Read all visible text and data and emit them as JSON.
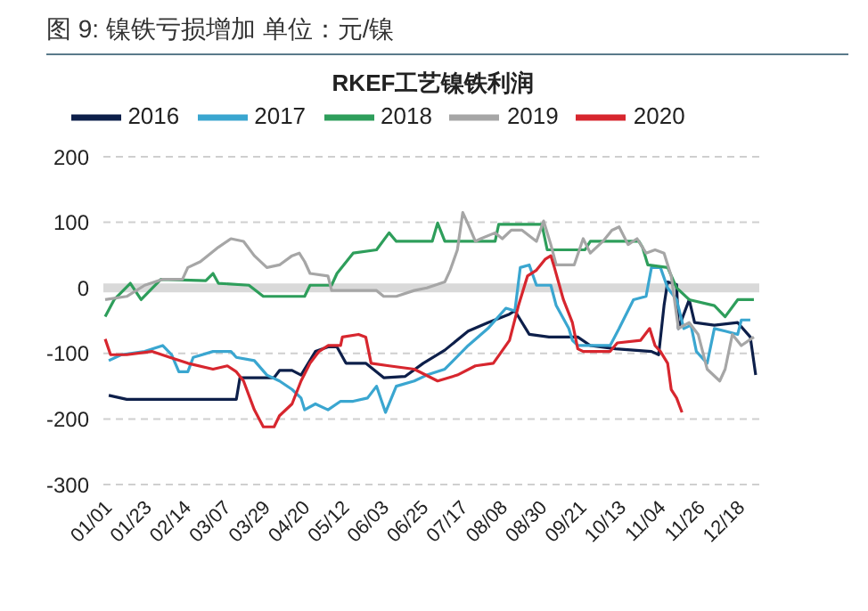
{
  "chart_data": {
    "type": "line",
    "title": "图 9:  镍铁亏损增加   单位：元/镍",
    "subtitle": "RKEF工艺镍铁利润",
    "xlim": [
      "--01-01",
      "--12-31"
    ],
    "xticks": [
      {
        "value": "--01-01",
        "label": "01/01"
      },
      {
        "value": "--01-23",
        "label": "01/23"
      },
      {
        "value": "--02-14",
        "label": "02/14"
      },
      {
        "value": "--03-07",
        "label": "03/07"
      },
      {
        "value": "--03-29",
        "label": "03/29"
      },
      {
        "value": "--04-20",
        "label": "04/20"
      },
      {
        "value": "--05-12",
        "label": "05/12"
      },
      {
        "value": "--06-03",
        "label": "06/03"
      },
      {
        "value": "--06-25",
        "label": "06/25"
      },
      {
        "value": "--07-17",
        "label": "07/17"
      },
      {
        "value": "--08-08",
        "label": "08/08"
      },
      {
        "value": "--08-30",
        "label": "08/30"
      },
      {
        "value": "--09-21",
        "label": "09/21"
      },
      {
        "value": "--10-13",
        "label": "10/13"
      },
      {
        "value": "--11-04",
        "label": "11/04"
      },
      {
        "value": "--11-26",
        "label": "11/26"
      },
      {
        "value": "--12-18",
        "label": "12/18"
      }
    ],
    "ylim": [
      -300,
      200
    ],
    "yticks": [
      -300,
      -200,
      -100,
      0,
      100,
      200
    ],
    "grid": "y",
    "legend": "top",
    "ref_lines": [
      {
        "axis": "y",
        "value": 0,
        "color": "#d9d9d9"
      }
    ],
    "series": [
      {
        "name": "2016",
        "color": "#0d1f4a",
        "x": [
          "--01-04",
          "--01-14",
          "--03-15",
          "--03-17",
          "--04-05",
          "--04-08",
          "--04-15",
          "--04-20",
          "--04-28",
          "--05-05",
          "--05-10",
          "--05-15",
          "--05-26",
          "--06-05",
          "--06-17",
          "--06-27",
          "--07-09",
          "--07-22",
          "--08-02",
          "--08-14",
          "--08-17",
          "--08-25",
          "--09-05",
          "--09-21",
          "--09-28",
          "--10-12",
          "--11-01",
          "--11-05",
          "--11-08",
          "--11-10",
          "--11-15",
          "--11-16",
          "--11-22",
          "--11-25",
          "--12-06",
          "--12-19",
          "--12-26",
          "--12-29"
        ],
        "values": [
          -164,
          -170,
          -170,
          -137,
          -137,
          -126,
          -126,
          -133,
          -97,
          -90,
          -90,
          -115,
          -115,
          -137,
          -135,
          -115,
          -95,
          -66,
          -53,
          -40,
          -35,
          -71,
          -75,
          -75,
          -88,
          -93,
          -97,
          -102,
          -27,
          9,
          5,
          -62,
          -18,
          -53,
          -57,
          -53,
          -75,
          -133
        ]
      },
      {
        "name": "2017",
        "color": "#3aa6d0",
        "x": [
          "--01-04",
          "--01-11",
          "--01-24",
          "--02-03",
          "--02-08",
          "--02-12",
          "--02-17",
          "--02-20",
          "--03-02",
          "--03-12",
          "--03-15",
          "--03-25",
          "--04-01",
          "--04-08",
          "--04-15",
          "--04-20",
          "--04-22",
          "--04-28",
          "--05-05",
          "--05-12",
          "--05-19",
          "--05-27",
          "--06-01",
          "--06-06",
          "--06-12",
          "--06-22",
          "--06-29",
          "--07-09",
          "--07-22",
          "--08-02",
          "--08-12",
          "--08-17",
          "--08-20",
          "--08-25",
          "--08-29",
          "--09-06",
          "--09-09",
          "--09-16",
          "--09-18",
          "--09-21",
          "--10-09",
          "--10-14",
          "--10-22",
          "--10-29",
          "--11-01",
          "--11-06",
          "--11-10",
          "--11-15",
          "--11-19",
          "--11-23",
          "--11-26",
          "--12-02",
          "--12-06",
          "--12-12",
          "--12-19",
          "--12-21",
          "--12-26"
        ],
        "values": [
          -111,
          -102,
          -97,
          -88,
          -102,
          -128,
          -128,
          -106,
          -97,
          -97,
          -106,
          -111,
          -133,
          -142,
          -155,
          -168,
          -186,
          -177,
          -186,
          -173,
          -173,
          -168,
          -150,
          -190,
          -150,
          -142,
          -133,
          -124,
          -88,
          -62,
          -31,
          -35,
          31,
          35,
          4,
          4,
          -27,
          -62,
          -80,
          -88,
          -88,
          -62,
          -18,
          -13,
          31,
          31,
          0,
          -18,
          -62,
          -57,
          -97,
          -115,
          -62,
          -66,
          -71,
          -49,
          -49
        ]
      },
      {
        "name": "2018",
        "color": "#2e9e5b",
        "x": [
          "--01-02",
          "--01-07",
          "--01-16",
          "--01-22",
          "--02-02",
          "--02-27",
          "--03-02",
          "--03-05",
          "--03-22",
          "--03-30",
          "--04-22",
          "--04-25",
          "--05-07",
          "--05-10",
          "--05-19",
          "--06-01",
          "--06-08",
          "--06-12",
          "--07-02",
          "--07-05",
          "--07-09",
          "--08-06",
          "--08-08",
          "--09-01",
          "--09-04",
          "--09-25",
          "--09-28",
          "--10-25",
          "--10-27",
          "--10-30",
          "--11-10",
          "--11-15",
          "--11-22",
          "--12-06",
          "--12-12",
          "--12-19",
          "--12-28"
        ],
        "values": [
          -44,
          -18,
          7,
          -18,
          13,
          11,
          22,
          7,
          4,
          -13,
          -13,
          4,
          4,
          22,
          53,
          58,
          84,
          71,
          71,
          99,
          71,
          71,
          97,
          97,
          58,
          58,
          71,
          71,
          62,
          35,
          31,
          0,
          -18,
          -27,
          -44,
          -18,
          -18
        ]
      },
      {
        "name": "2019",
        "color": "#a6a6a6",
        "x": [
          "--01-02",
          "--01-14",
          "--01-24",
          "--02-03",
          "--02-14",
          "--02-17",
          "--02-24",
          "--03-05",
          "--03-12",
          "--03-19",
          "--03-25",
          "--04-01",
          "--04-08",
          "--04-15",
          "--04-19",
          "--04-22",
          "--04-25",
          "--05-05",
          "--05-07",
          "--06-01",
          "--06-05",
          "--06-12",
          "--06-22",
          "--06-29",
          "--07-09",
          "--07-12",
          "--07-16",
          "--07-19",
          "--07-22",
          "--07-26",
          "--07-29",
          "--08-06",
          "--08-10",
          "--08-15",
          "--08-21",
          "--08-29",
          "--09-02",
          "--09-06",
          "--09-09",
          "--09-19",
          "--09-24",
          "--09-28",
          "--10-05",
          "--10-10",
          "--10-14",
          "--10-19",
          "--10-24",
          "--10-29",
          "--11-03",
          "--11-08",
          "--11-12",
          "--11-16",
          "--11-22",
          "--11-27",
          "--12-02",
          "--12-09",
          "--12-12",
          "--12-16",
          "--12-21",
          "--12-28"
        ],
        "values": [
          -18,
          -13,
          4,
          13,
          13,
          31,
          40,
          62,
          75,
          71,
          49,
          31,
          35,
          49,
          53,
          40,
          22,
          18,
          -4,
          -4,
          -13,
          -13,
          -4,
          0,
          9,
          27,
          58,
          115,
          97,
          71,
          75,
          84,
          75,
          88,
          88,
          71,
          102,
          66,
          35,
          35,
          75,
          53,
          71,
          88,
          93,
          66,
          75,
          53,
          58,
          53,
          18,
          -62,
          -53,
          -71,
          -124,
          -142,
          -124,
          -71,
          -88,
          -75
        ]
      },
      {
        "name": "2020",
        "color": "#d7262e",
        "x": [
          "--01-02",
          "--01-05",
          "--01-14",
          "--01-28",
          "--02-07",
          "--02-17",
          "--03-02",
          "--03-10",
          "--03-15",
          "--03-19",
          "--03-25",
          "--03-30",
          "--04-05",
          "--04-08",
          "--04-15",
          "--04-20",
          "--04-25",
          "--04-30",
          "--05-05",
          "--05-12",
          "--05-13",
          "--05-22",
          "--05-26",
          "--05-29",
          "--06-08",
          "--06-22",
          "--07-05",
          "--07-16",
          "--07-26",
          "--08-05",
          "--08-14",
          "--08-19",
          "--08-24",
          "--08-29",
          "--09-03",
          "--09-06",
          "--09-08",
          "--09-13",
          "--09-18",
          "--09-21",
          "--09-24",
          "--10-09",
          "--10-13",
          "--10-26",
          "--10-31",
          "--11-03",
          "--11-06",
          "--11-10",
          "--11-12",
          "--11-15",
          "--11-18"
        ],
        "values": [
          -78,
          -102,
          -102,
          -97,
          -106,
          -115,
          -124,
          -119,
          -128,
          -142,
          -186,
          -212,
          -212,
          -195,
          -177,
          -142,
          -115,
          -97,
          -88,
          -88,
          -75,
          -71,
          -75,
          -115,
          -119,
          -124,
          -142,
          -133,
          -119,
          -115,
          -80,
          -27,
          18,
          27,
          44,
          49,
          31,
          -18,
          -53,
          -93,
          -97,
          -97,
          -84,
          -80,
          -62,
          -88,
          -97,
          -115,
          -155,
          -168,
          -190
        ]
      }
    ]
  }
}
